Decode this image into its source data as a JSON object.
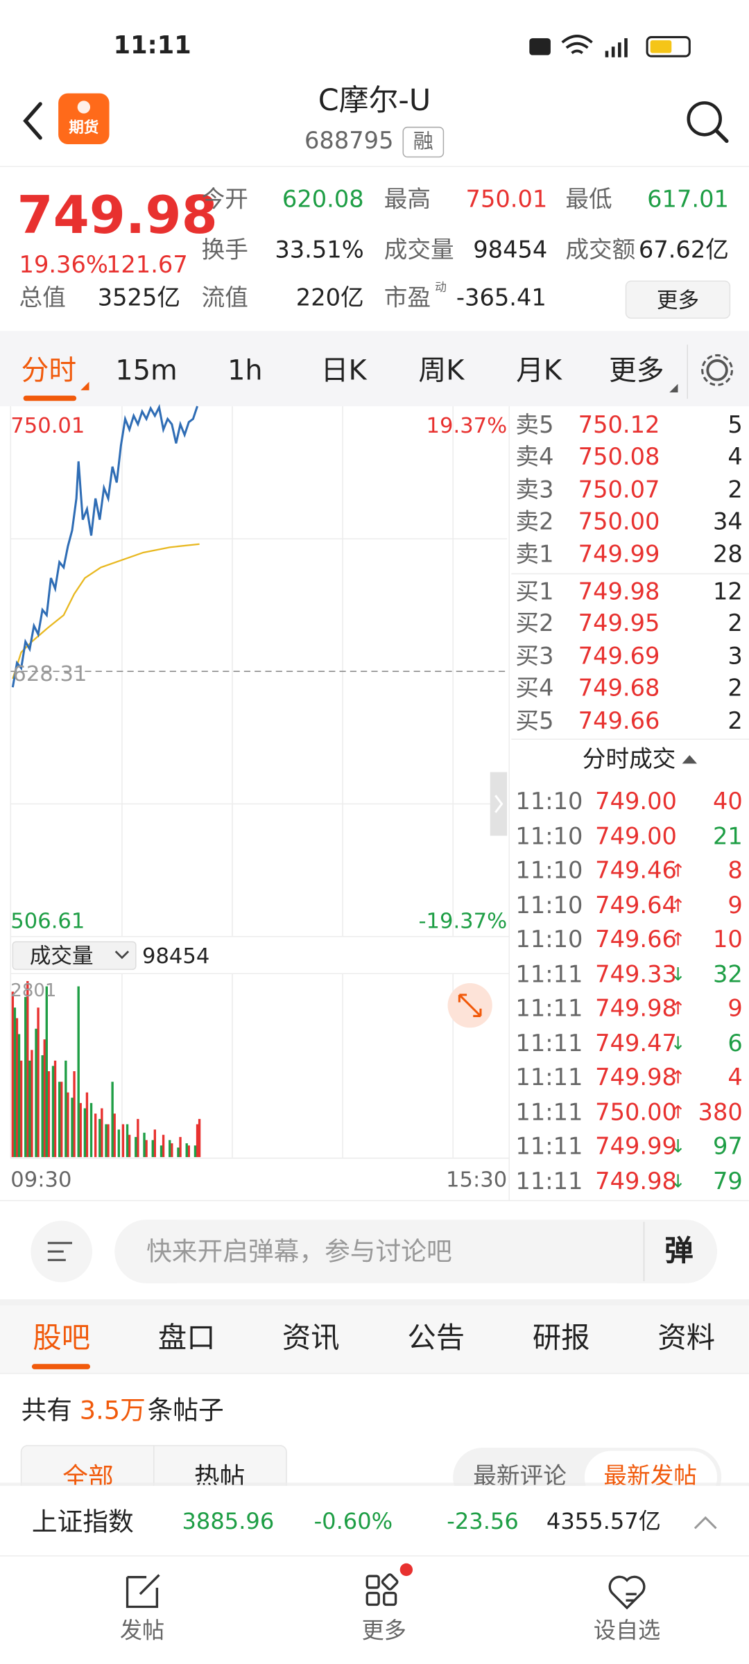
{
  "status_bar": {
    "time": "11:11"
  },
  "header": {
    "logo": "期货",
    "title": "C摩尔-U",
    "code": "688795",
    "badge": "融"
  },
  "quote": {
    "price": "749.98",
    "change_pct": "19.36%",
    "change": "121.67",
    "stats": [
      {
        "label": "今开",
        "value": "620.08",
        "color": "green"
      },
      {
        "label": "最高",
        "value": "750.01",
        "color": "red"
      },
      {
        "label": "最低",
        "value": "617.01",
        "color": "green"
      },
      {
        "label": "换手",
        "value": "33.51%",
        "color": "dark"
      },
      {
        "label": "成交量",
        "value": "98454",
        "color": "dark"
      },
      {
        "label": "成交额",
        "value": "67.62亿",
        "color": "dark"
      },
      {
        "label": "总值",
        "value": "3525亿",
        "color": "dark"
      },
      {
        "label": "流值",
        "value": "220亿",
        "color": "dark"
      },
      {
        "label": "市盈",
        "sup": "动",
        "value": "-365.41",
        "color": "dark"
      }
    ],
    "more": "更多"
  },
  "chart_tabs": [
    "分时",
    "15m",
    "1h",
    "日K",
    "周K",
    "月K",
    "更多"
  ],
  "intraday": {
    "high": "750.01",
    "high_pct": "19.37%",
    "prev_close": "628.31",
    "low": "506.61",
    "low_pct": "-19.37%",
    "volume_selector": "成交量",
    "volume": "98454",
    "volume_max": "2801",
    "time_start": "09:30",
    "time_end": "15:30"
  },
  "order_book": {
    "asks": [
      {
        "label": "卖5",
        "price": "750.12",
        "qty": "5"
      },
      {
        "label": "卖4",
        "price": "750.08",
        "qty": "4"
      },
      {
        "label": "卖3",
        "price": "750.07",
        "qty": "2"
      },
      {
        "label": "卖2",
        "price": "750.00",
        "qty": "34"
      },
      {
        "label": "卖1",
        "price": "749.99",
        "qty": "28"
      }
    ],
    "bids": [
      {
        "label": "买1",
        "price": "749.98",
        "qty": "12"
      },
      {
        "label": "买2",
        "price": "749.95",
        "qty": "2"
      },
      {
        "label": "买3",
        "price": "749.69",
        "qty": "3"
      },
      {
        "label": "买4",
        "price": "749.68",
        "qty": "2"
      },
      {
        "label": "买5",
        "price": "749.66",
        "qty": "2"
      }
    ]
  },
  "trades": {
    "title": "分时成交",
    "rows": [
      {
        "time": "11:10",
        "price": "749.00",
        "qty": "40",
        "side": "buy"
      },
      {
        "time": "11:10",
        "price": "749.00",
        "qty": "21",
        "side": "sell"
      },
      {
        "time": "11:10",
        "price": "749.46",
        "arrow": "↑",
        "qty": "8",
        "side": "buy"
      },
      {
        "time": "11:10",
        "price": "749.64",
        "arrow": "↑",
        "qty": "9",
        "side": "buy"
      },
      {
        "time": "11:10",
        "price": "749.66",
        "arrow": "↑",
        "qty": "10",
        "side": "buy"
      },
      {
        "time": "11:11",
        "price": "749.33",
        "arrow": "↓",
        "qty": "32",
        "side": "sell"
      },
      {
        "time": "11:11",
        "price": "749.98",
        "arrow": "↑",
        "qty": "9",
        "side": "buy"
      },
      {
        "time": "11:11",
        "price": "749.47",
        "arrow": "↓",
        "qty": "6",
        "side": "sell"
      },
      {
        "time": "11:11",
        "price": "749.98",
        "arrow": "↑",
        "qty": "4",
        "side": "buy"
      },
      {
        "time": "11:11",
        "price": "750.00",
        "arrow": "↑",
        "qty": "380",
        "side": "buy"
      },
      {
        "time": "11:11",
        "price": "749.99",
        "arrow": "↓",
        "qty": "97",
        "side": "sell"
      },
      {
        "time": "11:11",
        "price": "749.98",
        "arrow": "↓",
        "qty": "79",
        "side": "sell"
      }
    ]
  },
  "comment": {
    "placeholder": "快来开启弹幕，参与讨论吧",
    "danmu": "弹"
  },
  "section_tabs": [
    "股吧",
    "盘口",
    "资讯",
    "公告",
    "研报",
    "资料"
  ],
  "post_count": {
    "prefix": "共有",
    "count": "3.5万",
    "suffix": "条帖子"
  },
  "filters": [
    "全部",
    "热帖"
  ],
  "sort": [
    "最新评论",
    "最新发帖"
  ],
  "index_bar": {
    "name": "上证指数",
    "price": "3885.96",
    "change_pct": "-0.60%",
    "change": "-23.56",
    "turnover": "4355.57亿"
  },
  "bottom_nav": [
    "发帖",
    "更多",
    "设自选"
  ]
}
